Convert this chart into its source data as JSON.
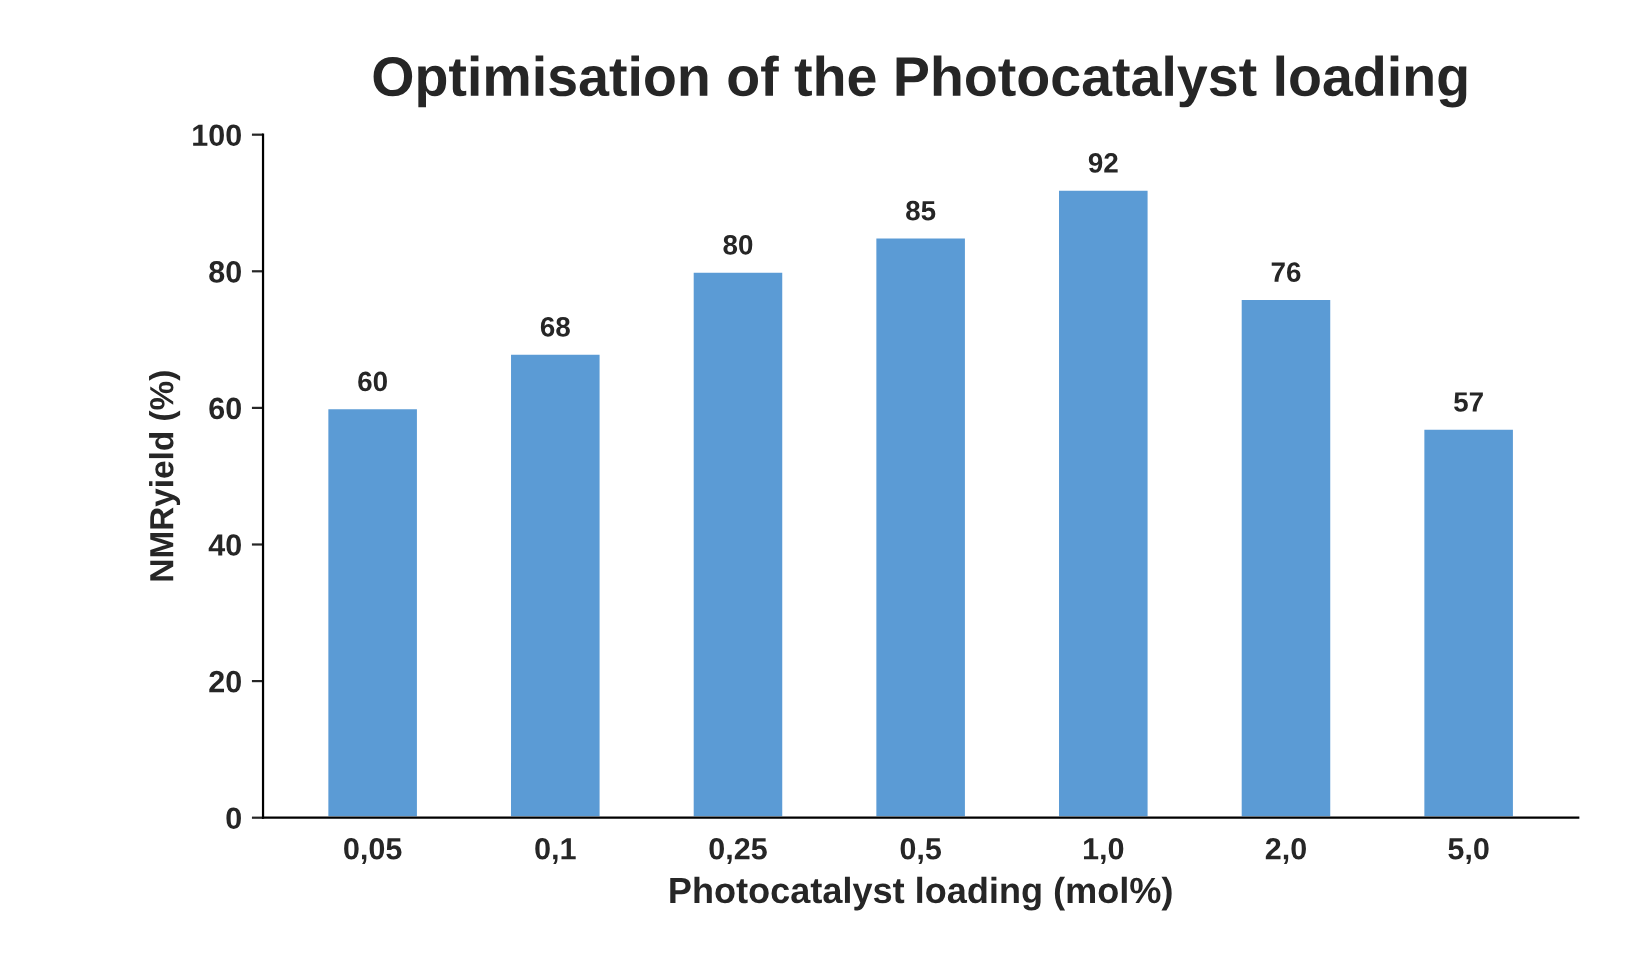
{
  "chart_data": {
    "type": "bar",
    "title": "Optimisation of the Photocatalyst loading",
    "xlabel": "Photocatalyst loading (mol%)",
    "ylabel": "NMRyield (%)",
    "categories": [
      "0,05",
      "0,1",
      "0,25",
      "0,5",
      "1,0",
      "2,0",
      "5,0"
    ],
    "values": [
      60,
      68,
      80,
      85,
      92,
      76,
      57
    ],
    "color": "#5b9bd5",
    "ylim": [
      0,
      100
    ],
    "yticks": [
      0,
      20,
      40,
      60,
      80,
      100
    ],
    "data_labels": true,
    "grid": false
  }
}
